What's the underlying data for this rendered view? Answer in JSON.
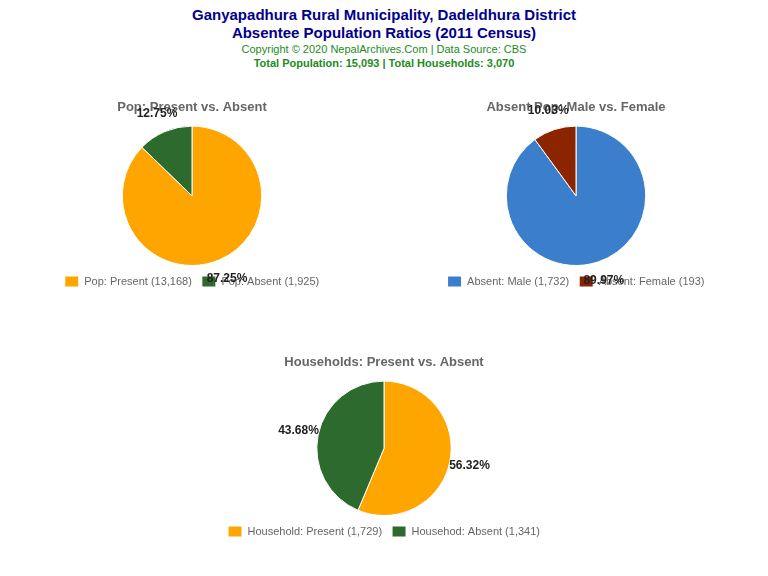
{
  "title": [
    "Ganyapadhura Rural Municipality, Dadeldhura District",
    "Absentee Population Ratios (2011 Census)"
  ],
  "subtitle": [
    "Copyright © 2020 NepalArchives.Com | Data Source: CBS",
    "Total Population: 15,093 | Total Households: 3,070"
  ],
  "chart_data": [
    {
      "type": "pie",
      "title": "Pop: Present vs. Absent",
      "categories": [
        "Pop: Present (13,168)",
        "Pop: Absent (1,925)"
      ],
      "values": [
        87.25,
        12.75
      ],
      "value_labels": [
        "87.25%",
        "12.75%"
      ],
      "colors": [
        "#FFA500",
        "#2D6A2D"
      ],
      "data_labels": true,
      "legend": "bottom"
    },
    {
      "type": "pie",
      "title": "Absent Pop: Male vs. Female",
      "categories": [
        "Absent: Male (1,732)",
        "Absent: Female (193)"
      ],
      "values": [
        89.97,
        10.03
      ],
      "value_labels": [
        "89.97%",
        "10.03%"
      ],
      "colors": [
        "#3B7FCC",
        "#8B2500"
      ],
      "data_labels": true,
      "legend": "bottom"
    },
    {
      "type": "pie",
      "title": "Households: Present vs. Absent",
      "categories": [
        "Household: Present (1,729)",
        "Househod: Absent (1,341)"
      ],
      "values": [
        56.32,
        43.68
      ],
      "value_labels": [
        "56.32%",
        "43.68%"
      ],
      "colors": [
        "#FFA500",
        "#2D6A2D"
      ],
      "data_labels": true,
      "legend": "bottom"
    }
  ]
}
